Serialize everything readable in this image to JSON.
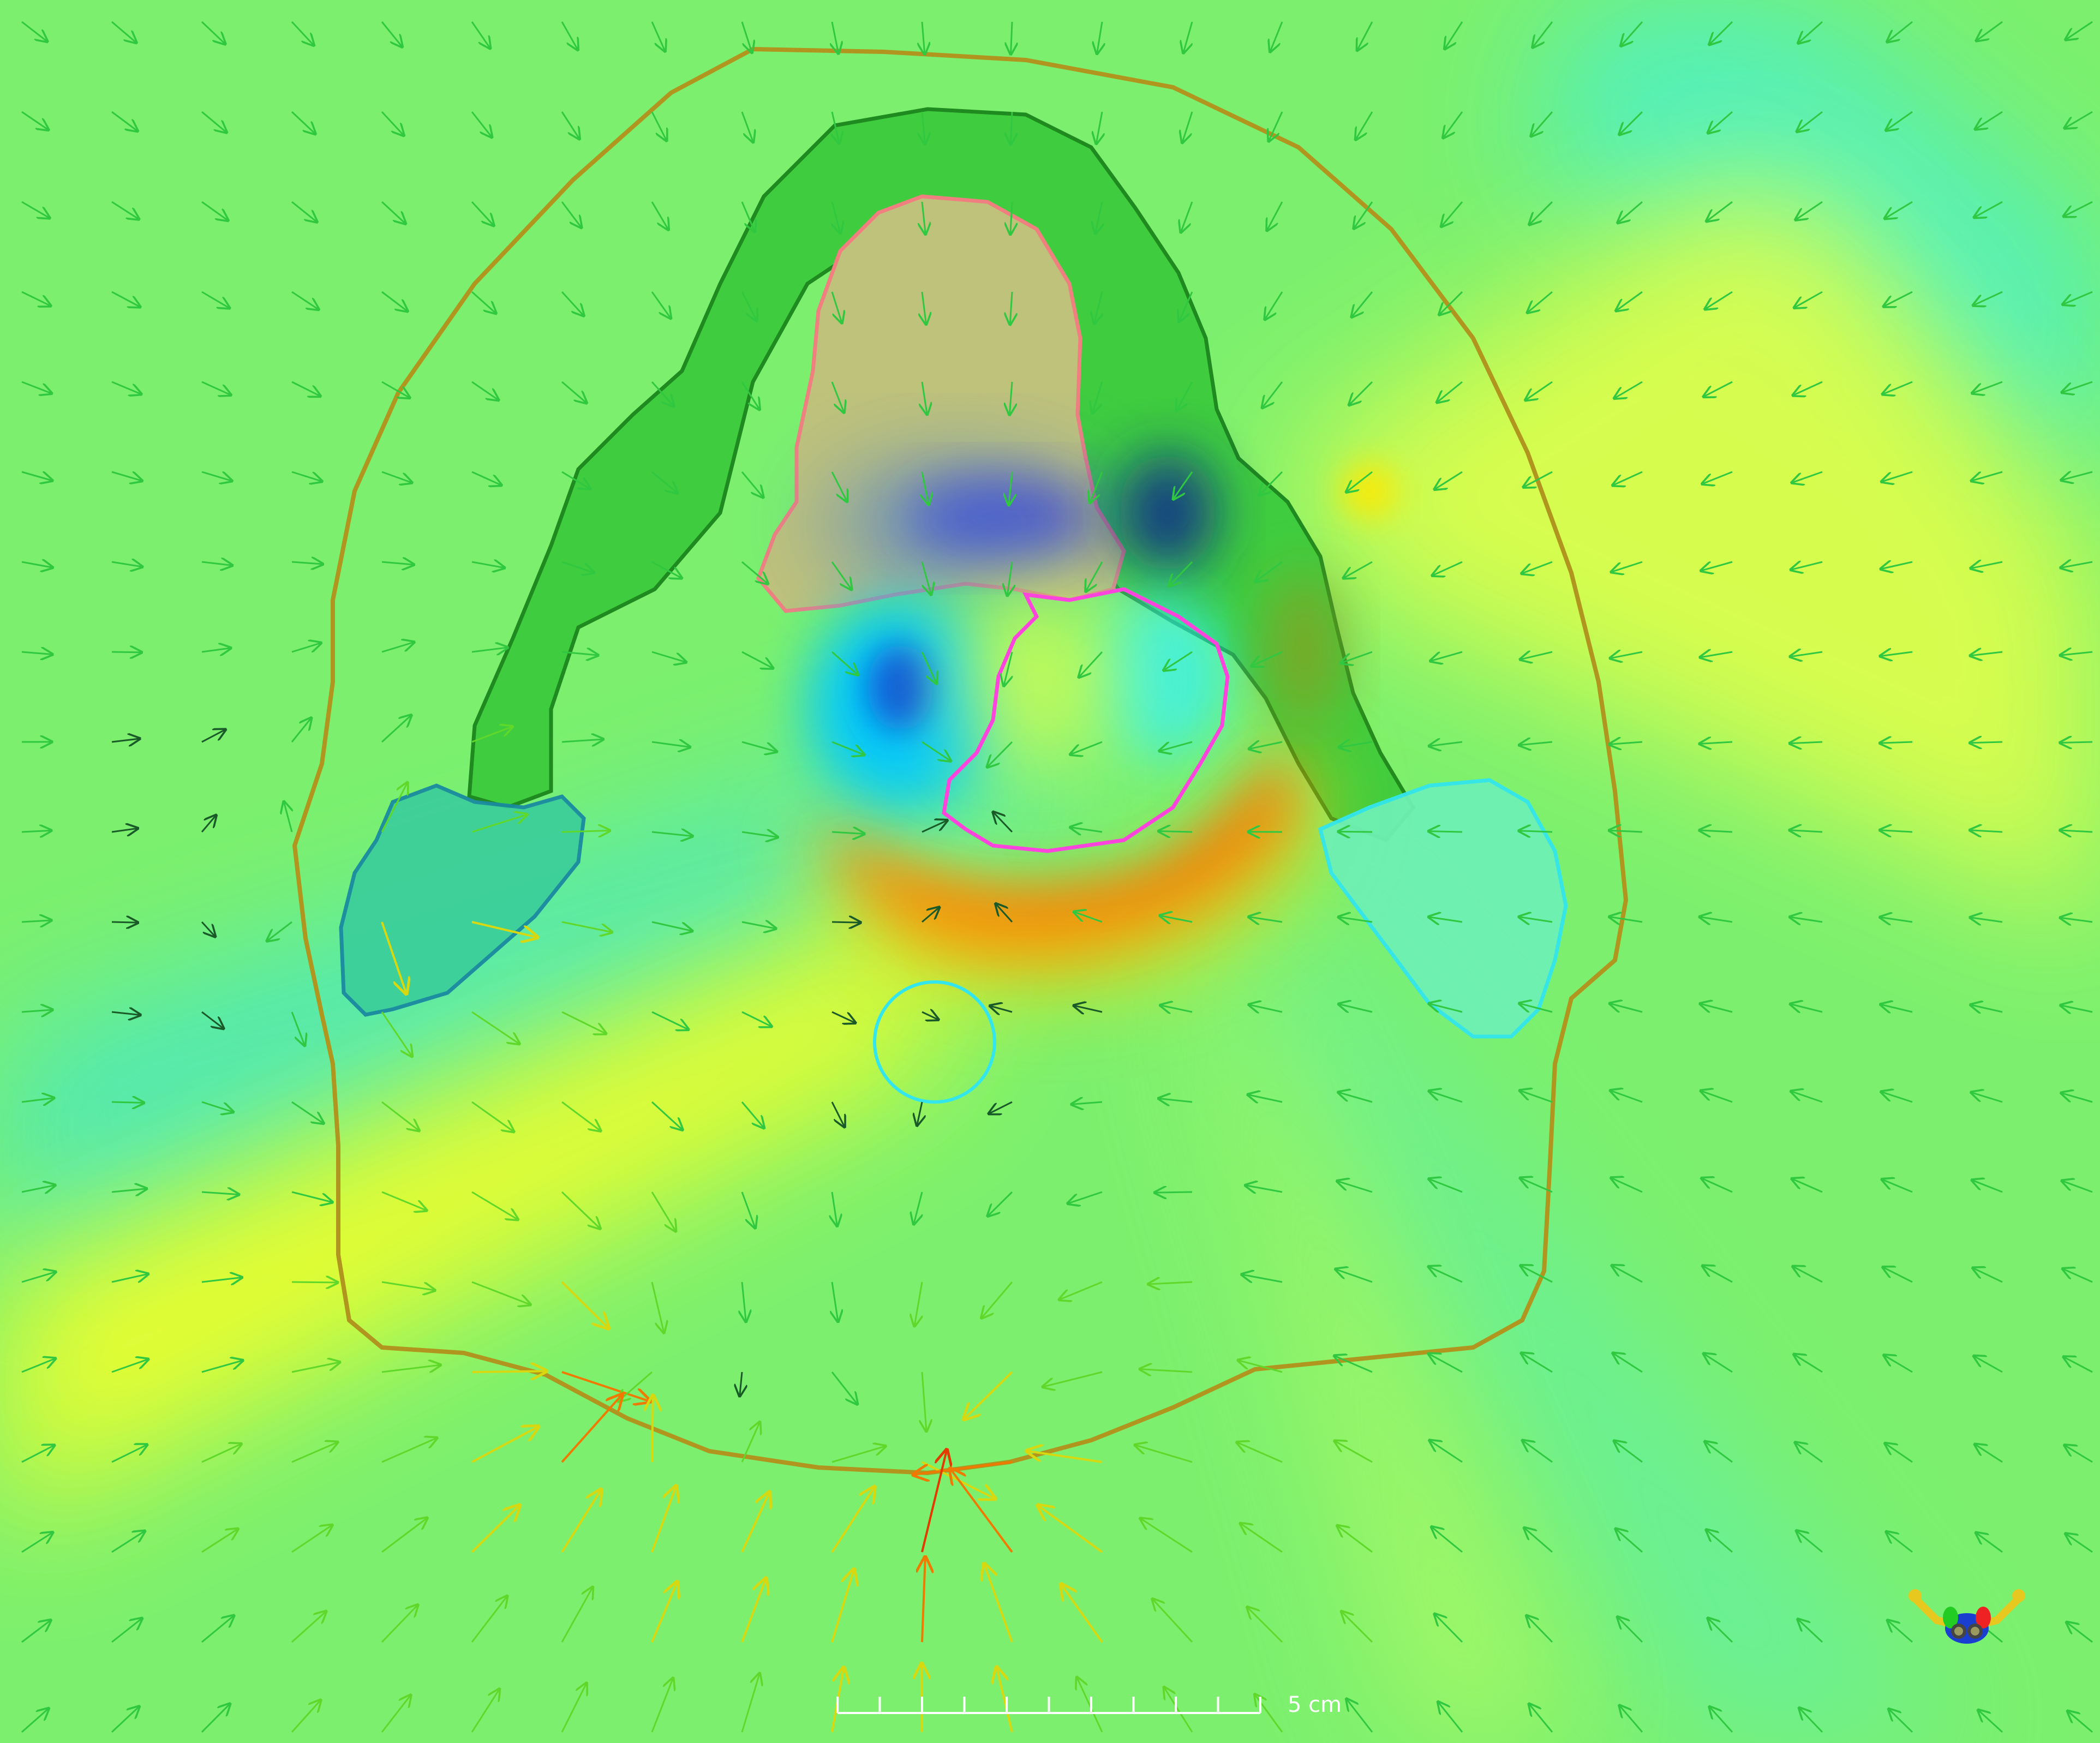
{
  "scale_bar": {
    "label": "5 cm"
  },
  "colors": {
    "background": "#7cf06e",
    "body_outline": "#b0961e",
    "mandible": "#3fcc3f",
    "mandible_edge": "#1f8a1f",
    "tongue": "#bfc27a",
    "tongue_edge": "#f08080",
    "target": "#ff44dd",
    "left_parotid": "#3dcf9a",
    "left_parotid_edge": "#1a8aa0",
    "right_parotid": "#6ef0b4",
    "right_parotid_edge": "#33e6ee",
    "spinal_cord_edge": "#33e6ee",
    "hot": "#ff5a00",
    "warm": "#ffe600",
    "cool": "#00e6ff",
    "cold": "#6a2bcf"
  },
  "orientation_widget": {
    "icon": "patient-orientation-icon"
  }
}
